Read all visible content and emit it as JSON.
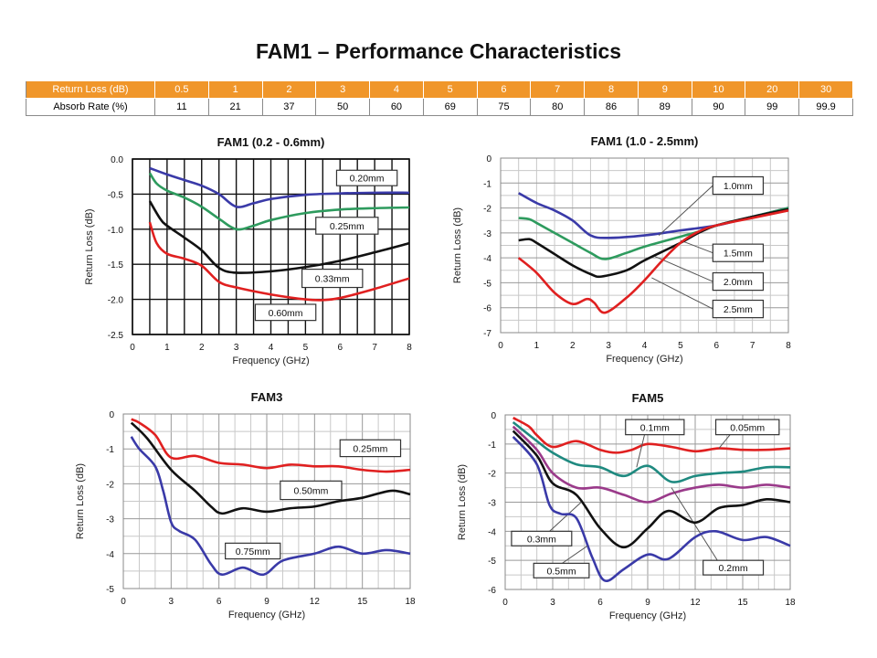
{
  "title": "FAM1 – Performance Characteristics",
  "table": {
    "header": [
      "Return Loss (dB)",
      "0.5",
      "1",
      "2",
      "3",
      "4",
      "5",
      "6",
      "7",
      "8",
      "9",
      "10",
      "20",
      "30"
    ],
    "row": [
      "Absorb Rate (%)",
      "11",
      "21",
      "37",
      "50",
      "60",
      "69",
      "75",
      "80",
      "86",
      "89",
      "90",
      "99",
      "99.9"
    ],
    "header_color": "#f0962a"
  },
  "chart_data": [
    {
      "type": "line",
      "title": "FAM1 (0.2 - 0.6mm)",
      "xlabel": "Frequency (GHz)",
      "ylabel": "Return Loss (dB)",
      "xlim": [
        0,
        8
      ],
      "ylim": [
        -2.5,
        0
      ],
      "x_ticks": [
        "0",
        "1",
        "2",
        "3",
        "4",
        "5",
        "6",
        "7",
        "8"
      ],
      "y_ticks": [
        "0.0",
        "-0.5",
        "-1.0",
        "-1.5",
        "-2.0",
        "-2.5"
      ],
      "grid": true,
      "series": [
        {
          "name": "0.20mm",
          "color": "#3a3aa8",
          "points": [
            [
              0.5,
              -0.13
            ],
            [
              1,
              -0.22
            ],
            [
              1.5,
              -0.3
            ],
            [
              2,
              -0.38
            ],
            [
              2.5,
              -0.5
            ],
            [
              3,
              -0.68
            ],
            [
              3.5,
              -0.63
            ],
            [
              4,
              -0.57
            ],
            [
              5,
              -0.51
            ],
            [
              6,
              -0.49
            ],
            [
              7,
              -0.48
            ],
            [
              8,
              -0.48
            ]
          ]
        },
        {
          "name": "0.25mm",
          "color": "#2e9b5e",
          "points": [
            [
              0.5,
              -0.2
            ],
            [
              0.7,
              -0.35
            ],
            [
              1,
              -0.45
            ],
            [
              1.5,
              -0.55
            ],
            [
              2,
              -0.68
            ],
            [
              2.5,
              -0.85
            ],
            [
              3,
              -1.0
            ],
            [
              3.5,
              -0.95
            ],
            [
              4,
              -0.87
            ],
            [
              5,
              -0.77
            ],
            [
              6,
              -0.72
            ],
            [
              7,
              -0.7
            ],
            [
              8,
              -0.69
            ]
          ]
        },
        {
          "name": "0.33mm",
          "color": "#111111",
          "points": [
            [
              0.5,
              -0.6
            ],
            [
              0.8,
              -0.85
            ],
            [
              1,
              -0.95
            ],
            [
              1.5,
              -1.12
            ],
            [
              2,
              -1.3
            ],
            [
              2.5,
              -1.55
            ],
            [
              3,
              -1.62
            ],
            [
              4,
              -1.6
            ],
            [
              5,
              -1.54
            ],
            [
              6,
              -1.45
            ],
            [
              7,
              -1.33
            ],
            [
              8,
              -1.2
            ]
          ]
        },
        {
          "name": "0.60mm",
          "color": "#e02020",
          "points": [
            [
              0.5,
              -0.9
            ],
            [
              0.7,
              -1.2
            ],
            [
              1,
              -1.35
            ],
            [
              1.5,
              -1.42
            ],
            [
              2,
              -1.52
            ],
            [
              2.5,
              -1.75
            ],
            [
              3,
              -1.83
            ],
            [
              4,
              -1.93
            ],
            [
              5,
              -2.0
            ],
            [
              5.5,
              -2.01
            ],
            [
              6,
              -1.98
            ],
            [
              7,
              -1.85
            ],
            [
              8,
              -1.7
            ]
          ]
        }
      ]
    },
    {
      "type": "line",
      "title": "FAM1 (1.0 - 2.5mm)",
      "xlabel": "Frequency (GHz)",
      "ylabel": "Return Loss (dB)",
      "xlim": [
        0,
        8
      ],
      "ylim": [
        -7,
        0
      ],
      "x_ticks": [
        "0",
        "1",
        "2",
        "3",
        "4",
        "5",
        "6",
        "7",
        "8"
      ],
      "y_ticks": [
        "0",
        "-1",
        "-2",
        "-3",
        "-4",
        "-5",
        "-6",
        "-7"
      ],
      "grid": true,
      "series": [
        {
          "name": "1.0mm",
          "color": "#3a3aa8",
          "points": [
            [
              0.5,
              -1.4
            ],
            [
              1,
              -1.8
            ],
            [
              1.5,
              -2.1
            ],
            [
              2,
              -2.5
            ],
            [
              2.5,
              -3.1
            ],
            [
              3,
              -3.2
            ],
            [
              4,
              -3.1
            ],
            [
              5,
              -2.9
            ],
            [
              6,
              -2.7
            ],
            [
              7,
              -2.35
            ],
            [
              8,
              -2.0
            ]
          ]
        },
        {
          "name": "1.5mm",
          "color": "#2e9b5e",
          "points": [
            [
              0.5,
              -2.4
            ],
            [
              0.8,
              -2.45
            ],
            [
              1,
              -2.6
            ],
            [
              1.5,
              -3.0
            ],
            [
              2,
              -3.4
            ],
            [
              2.5,
              -3.8
            ],
            [
              2.9,
              -4.05
            ],
            [
              3.5,
              -3.8
            ],
            [
              4,
              -3.55
            ],
            [
              5,
              -3.15
            ],
            [
              5.5,
              -2.95
            ],
            [
              6,
              -2.7
            ],
            [
              7,
              -2.35
            ],
            [
              8,
              -2.0
            ]
          ]
        },
        {
          "name": "2.0mm",
          "color": "#111111",
          "points": [
            [
              0.5,
              -3.3
            ],
            [
              0.8,
              -3.25
            ],
            [
              1,
              -3.4
            ],
            [
              1.5,
              -3.85
            ],
            [
              2,
              -4.3
            ],
            [
              2.5,
              -4.65
            ],
            [
              2.8,
              -4.75
            ],
            [
              3.5,
              -4.5
            ],
            [
              4,
              -4.1
            ],
            [
              5,
              -3.4
            ],
            [
              5.5,
              -3.0
            ],
            [
              6,
              -2.7
            ],
            [
              7,
              -2.35
            ],
            [
              8,
              -2.05
            ]
          ]
        },
        {
          "name": "2.5mm",
          "color": "#e02020",
          "points": [
            [
              0.5,
              -4.0
            ],
            [
              1,
              -4.6
            ],
            [
              1.5,
              -5.4
            ],
            [
              2,
              -5.85
            ],
            [
              2.4,
              -5.65
            ],
            [
              2.6,
              -5.8
            ],
            [
              2.9,
              -6.2
            ],
            [
              3.5,
              -5.6
            ],
            [
              4,
              -4.9
            ],
            [
              4.5,
              -4.1
            ],
            [
              5,
              -3.4
            ],
            [
              5.5,
              -2.95
            ],
            [
              6,
              -2.7
            ],
            [
              7,
              -2.4
            ],
            [
              8,
              -2.1
            ]
          ]
        }
      ]
    },
    {
      "type": "line",
      "title": "FAM3",
      "xlabel": "Frequency (GHz)",
      "ylabel": "Return Loss (dB)",
      "xlim": [
        0,
        18
      ],
      "ylim": [
        -5,
        0
      ],
      "x_ticks": [
        "0",
        "3",
        "6",
        "9",
        "12",
        "15",
        "18"
      ],
      "y_ticks": [
        "0",
        "-1",
        "-2",
        "-3",
        "-4",
        "-5"
      ],
      "grid": true,
      "series": [
        {
          "name": "0.25mm",
          "color": "#e02020",
          "points": [
            [
              0.5,
              -0.15
            ],
            [
              1,
              -0.25
            ],
            [
              2,
              -0.6
            ],
            [
              3,
              -1.25
            ],
            [
              4.5,
              -1.2
            ],
            [
              6,
              -1.4
            ],
            [
              7.5,
              -1.45
            ],
            [
              9,
              -1.55
            ],
            [
              10.5,
              -1.45
            ],
            [
              12,
              -1.5
            ],
            [
              13.5,
              -1.5
            ],
            [
              15,
              -1.6
            ],
            [
              16.5,
              -1.65
            ],
            [
              18,
              -1.6
            ]
          ]
        },
        {
          "name": "0.50mm",
          "color": "#111111",
          "points": [
            [
              0.5,
              -0.25
            ],
            [
              1.5,
              -0.7
            ],
            [
              3,
              -1.6
            ],
            [
              4.5,
              -2.2
            ],
            [
              5.5,
              -2.65
            ],
            [
              6.2,
              -2.85
            ],
            [
              7.5,
              -2.7
            ],
            [
              9,
              -2.8
            ],
            [
              10.5,
              -2.7
            ],
            [
              12,
              -2.65
            ],
            [
              13.5,
              -2.5
            ],
            [
              15,
              -2.4
            ],
            [
              16.8,
              -2.2
            ],
            [
              18,
              -2.3
            ]
          ]
        },
        {
          "name": "0.75mm",
          "color": "#3a3aa8",
          "points": [
            [
              0.5,
              -0.65
            ],
            [
              1,
              -1.0
            ],
            [
              2,
              -1.5
            ],
            [
              2.5,
              -2.2
            ],
            [
              3,
              -3.1
            ],
            [
              3.5,
              -3.35
            ],
            [
              4.5,
              -3.6
            ],
            [
              5.5,
              -4.3
            ],
            [
              6.2,
              -4.6
            ],
            [
              7.5,
              -4.4
            ],
            [
              8.8,
              -4.6
            ],
            [
              10,
              -4.2
            ],
            [
              12,
              -4.0
            ],
            [
              13.5,
              -3.8
            ],
            [
              15,
              -4.0
            ],
            [
              16.5,
              -3.9
            ],
            [
              18,
              -4.0
            ]
          ]
        }
      ]
    },
    {
      "type": "line",
      "title": "FAM5",
      "xlabel": "Frequency (GHz)",
      "ylabel": "Return Loss (dB)",
      "xlim": [
        0,
        18
      ],
      "ylim": [
        -6,
        0
      ],
      "x_ticks": [
        "0",
        "3",
        "6",
        "9",
        "12",
        "15",
        "18"
      ],
      "y_ticks": [
        "0",
        "-1",
        "-2",
        "-3",
        "-4",
        "-5",
        "-6"
      ],
      "grid": true,
      "series": [
        {
          "name": "0.05mm",
          "color": "#e02020",
          "points": [
            [
              0.5,
              -0.1
            ],
            [
              1.5,
              -0.4
            ],
            [
              2,
              -0.7
            ],
            [
              3,
              -1.1
            ],
            [
              4.5,
              -0.9
            ],
            [
              6,
              -1.2
            ],
            [
              7,
              -1.3
            ],
            [
              8,
              -1.2
            ],
            [
              9,
              -1.0
            ],
            [
              10.5,
              -1.1
            ],
            [
              12,
              -1.25
            ],
            [
              13.5,
              -1.15
            ],
            [
              15,
              -1.2
            ],
            [
              16.5,
              -1.2
            ],
            [
              18,
              -1.15
            ]
          ]
        },
        {
          "name": "0.1mm",
          "color": "#1f8a80",
          "points": [
            [
              0.5,
              -0.25
            ],
            [
              2,
              -0.9
            ],
            [
              3,
              -1.3
            ],
            [
              4.5,
              -1.7
            ],
            [
              6,
              -1.8
            ],
            [
              7.5,
              -2.1
            ],
            [
              9,
              -1.75
            ],
            [
              10.5,
              -2.3
            ],
            [
              12,
              -2.1
            ],
            [
              13.5,
              -2.0
            ],
            [
              15,
              -1.95
            ],
            [
              16.5,
              -1.8
            ],
            [
              18,
              -1.8
            ]
          ]
        },
        {
          "name": "0.2mm",
          "color": "#9a3a8a",
          "points": [
            [
              0.5,
              -0.4
            ],
            [
              2,
              -1.2
            ],
            [
              3,
              -2.0
            ],
            [
              4.5,
              -2.5
            ],
            [
              6,
              -2.5
            ],
            [
              7.5,
              -2.75
            ],
            [
              9,
              -3.0
            ],
            [
              10.5,
              -2.7
            ],
            [
              12,
              -2.5
            ],
            [
              13.5,
              -2.4
            ],
            [
              15,
              -2.5
            ],
            [
              16.5,
              -2.4
            ],
            [
              18,
              -2.5
            ]
          ]
        },
        {
          "name": "0.3mm",
          "color": "#111111",
          "points": [
            [
              0.5,
              -0.55
            ],
            [
              2,
              -1.4
            ],
            [
              3,
              -2.35
            ],
            [
              4.5,
              -2.75
            ],
            [
              6,
              -3.9
            ],
            [
              7.5,
              -4.55
            ],
            [
              9,
              -3.9
            ],
            [
              10.3,
              -3.3
            ],
            [
              12,
              -3.7
            ],
            [
              13.5,
              -3.2
            ],
            [
              15,
              -3.1
            ],
            [
              16.5,
              -2.9
            ],
            [
              18,
              -3.0
            ]
          ]
        },
        {
          "name": "0.5mm",
          "color": "#3a3aa8",
          "points": [
            [
              0.5,
              -0.75
            ],
            [
              2,
              -1.7
            ],
            [
              2.8,
              -3.1
            ],
            [
              3.5,
              -3.4
            ],
            [
              4.5,
              -3.55
            ],
            [
              5.5,
              -4.9
            ],
            [
              6.3,
              -5.7
            ],
            [
              7.5,
              -5.3
            ],
            [
              9,
              -4.8
            ],
            [
              10.3,
              -4.95
            ],
            [
              12,
              -4.2
            ],
            [
              13.3,
              -4.0
            ],
            [
              15,
              -4.3
            ],
            [
              16.5,
              -4.2
            ],
            [
              18,
              -4.5
            ]
          ]
        }
      ]
    }
  ]
}
